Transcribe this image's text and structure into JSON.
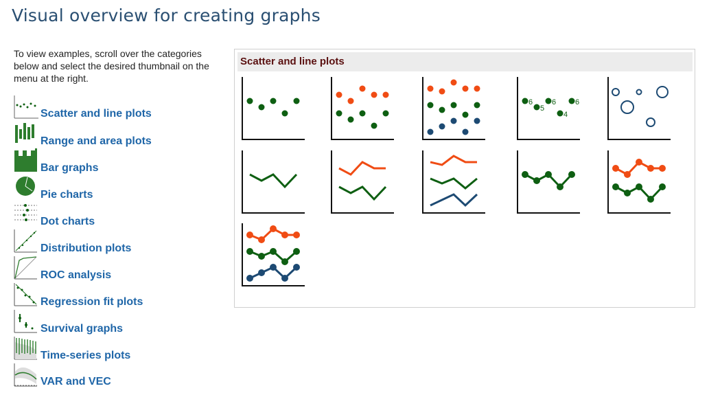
{
  "page": {
    "title": "Visual overview for creating graphs"
  },
  "intro": {
    "text": "To view examples, scroll over the categories below and select the desired thumbnail on the menu at the right."
  },
  "categories": [
    {
      "label": "Scatter and line plots",
      "icon": "scatter-line-icon"
    },
    {
      "label": "Range and area plots",
      "icon": "range-area-icon"
    },
    {
      "label": "Bar graphs",
      "icon": "bar-graph-icon"
    },
    {
      "label": "Pie charts",
      "icon": "pie-chart-icon"
    },
    {
      "label": "Dot charts",
      "icon": "dot-chart-icon"
    },
    {
      "label": "Distribution plots",
      "icon": "distribution-plot-icon"
    },
    {
      "label": "ROC analysis",
      "icon": "roc-analysis-icon"
    },
    {
      "label": "Regression fit plots",
      "icon": "regression-fit-icon"
    },
    {
      "label": "Survival graphs",
      "icon": "survival-graph-icon"
    },
    {
      "label": "Time-series plots",
      "icon": "time-series-icon"
    },
    {
      "label": "VAR and VEC",
      "icon": "var-vec-icon"
    }
  ],
  "panel": {
    "title": "Scatter and line plots",
    "thumbnails": [
      {
        "name": "scatter-one-series-thumbnail"
      },
      {
        "name": "scatter-two-series-thumbnail"
      },
      {
        "name": "scatter-three-series-thumbnail"
      },
      {
        "name": "scatter-marker-labels-thumbnail",
        "labels": [
          "6",
          "5",
          "6",
          "4",
          "6"
        ]
      },
      {
        "name": "bubble-plot-thumbnail"
      },
      {
        "name": "line-one-series-thumbnail"
      },
      {
        "name": "line-two-series-thumbnail"
      },
      {
        "name": "line-three-series-thumbnail"
      },
      {
        "name": "connected-one-series-thumbnail"
      },
      {
        "name": "connected-two-series-thumbnail"
      },
      {
        "name": "connected-three-series-thumbnail"
      }
    ]
  },
  "colors": {
    "green": "#0e5f12",
    "orange": "#f04c14",
    "navy": "#1d4a73",
    "link": "#1f66a8",
    "title": "#2a4f72",
    "panel_title": "#5a1010"
  }
}
